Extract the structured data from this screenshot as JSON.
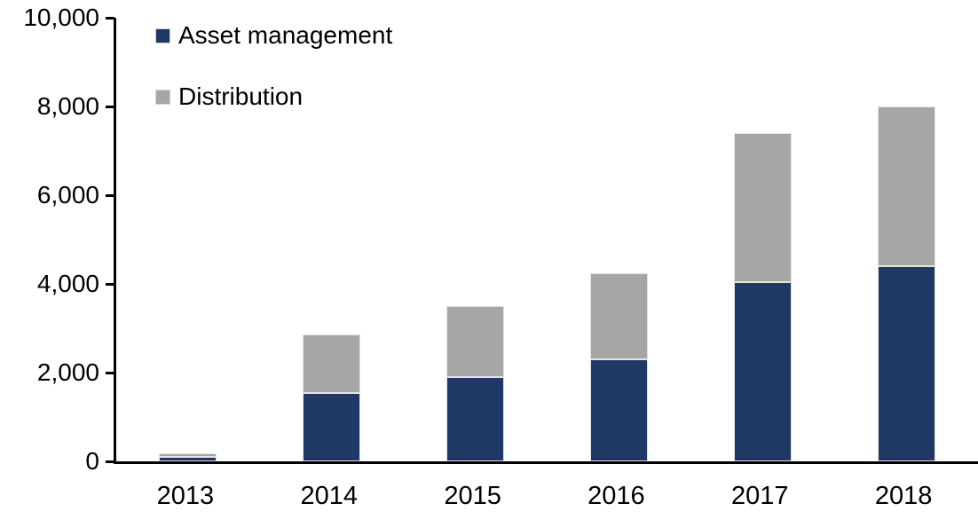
{
  "chart_data": {
    "type": "bar",
    "stacked": true,
    "title": "",
    "xlabel": "",
    "ylabel": "",
    "categories": [
      "2013",
      "2014",
      "2015",
      "2016",
      "2017",
      "2018"
    ],
    "series": [
      {
        "name": "Asset management",
        "color": "#1F3864",
        "values": [
          110,
          1550,
          1900,
          2300,
          4050,
          4400
        ]
      },
      {
        "name": "Distribution",
        "color": "#A6A6A6",
        "values": [
          80,
          1320,
          1600,
          1950,
          3350,
          3600
        ]
      }
    ],
    "stack_totals_estimate": [
      190,
      2870,
      3500,
      4250,
      7400,
      8000
    ],
    "ylim": [
      0,
      10000
    ],
    "yticks": [
      0,
      2000,
      4000,
      6000,
      8000,
      10000
    ],
    "ytick_labels": [
      "0",
      "2,000",
      "4,000",
      "6,000",
      "8,000",
      "10,000"
    ],
    "grid": false,
    "legend_position": "top-left-inside",
    "background_color": "#FFFFFF",
    "axis_color": "#000000",
    "text_color": "#000000"
  }
}
